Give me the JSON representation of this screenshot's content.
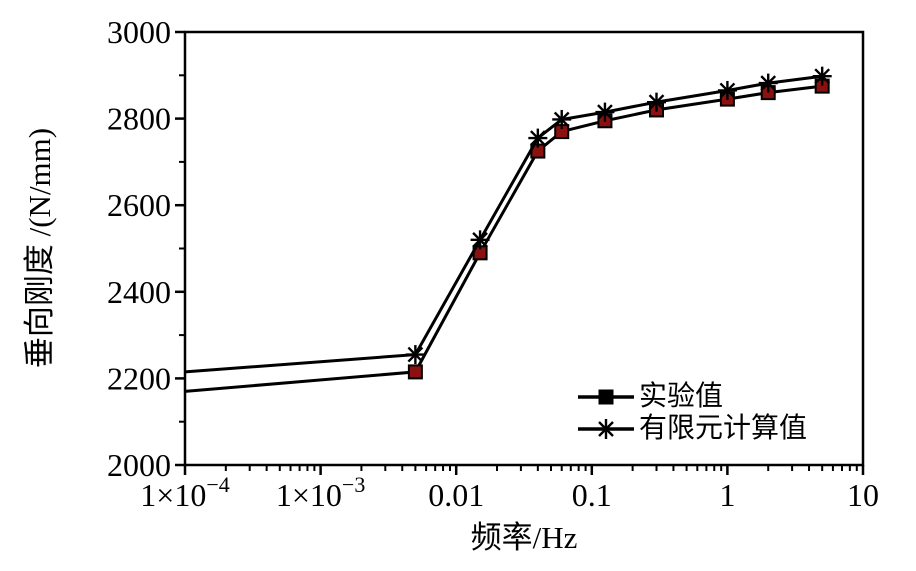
{
  "chart_data": {
    "type": "line",
    "title": "",
    "xlabel": "频率/Hz",
    "ylabel": "垂向刚度 /(N/mm)",
    "x_scale": "log",
    "xlim": [
      0.0001,
      10
    ],
    "ylim": [
      2000,
      3000
    ],
    "grid": false,
    "legend_position": "inside-bottom-right",
    "axis_color": "#000000",
    "background_color": "#ffffff",
    "x_ticks": [
      {
        "value": 0.0001,
        "label": "1×10",
        "sup": "−4"
      },
      {
        "value": 0.001,
        "label": "1×10",
        "sup": "−3"
      },
      {
        "value": 0.01,
        "label": "0.01"
      },
      {
        "value": 0.1,
        "label": "0.1"
      },
      {
        "value": 1,
        "label": "1"
      },
      {
        "value": 10,
        "label": "10"
      }
    ],
    "y_ticks": [
      2000,
      2200,
      2400,
      2600,
      2800,
      3000
    ],
    "y_minor_ticks": [
      2100,
      2300,
      2500,
      2700,
      2900
    ],
    "x": [
      0.0001,
      0.005,
      0.015,
      0.04,
      0.06,
      0.125,
      0.3,
      1,
      2,
      5
    ],
    "series": [
      {
        "name": "实验值",
        "marker": "square",
        "marker_color": "#8b1010",
        "line_color": "#000000",
        "marker_start_index": 1,
        "values": [
          2170,
          2215,
          2490,
          2725,
          2770,
          2795,
          2820,
          2845,
          2860,
          2875
        ]
      },
      {
        "name": "有限元计算值",
        "marker": "asterisk",
        "marker_color": "#000000",
        "line_color": "#000000",
        "marker_start_index": 1,
        "values": [
          2215,
          2255,
          2520,
          2755,
          2798,
          2815,
          2838,
          2865,
          2882,
          2898
        ]
      }
    ]
  }
}
